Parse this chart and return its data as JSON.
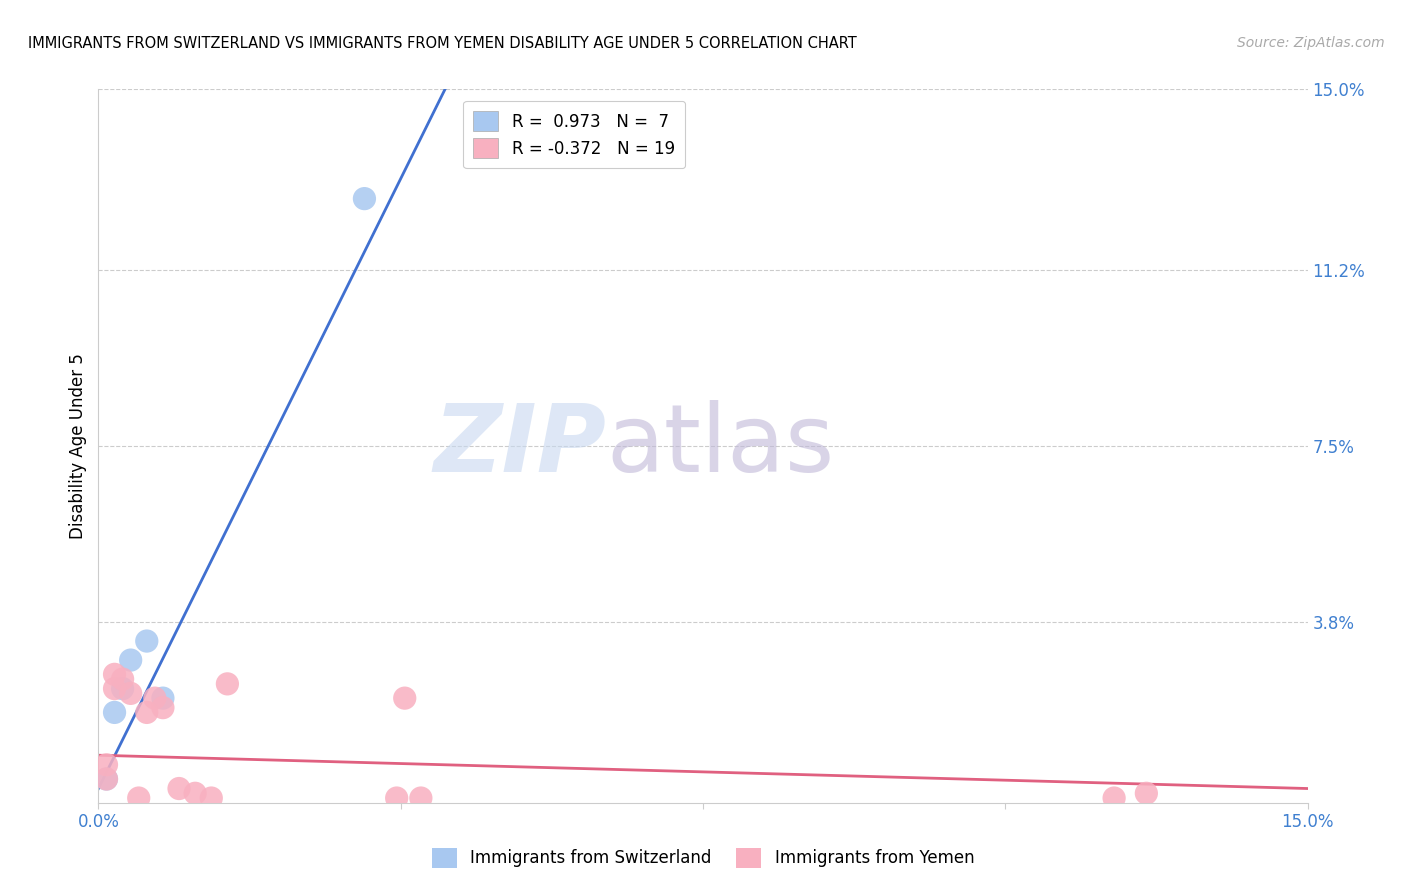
{
  "title": "IMMIGRANTS FROM SWITZERLAND VS IMMIGRANTS FROM YEMEN DISABILITY AGE UNDER 5 CORRELATION CHART",
  "source": "Source: ZipAtlas.com",
  "ylabel": "Disability Age Under 5",
  "xmin": 0.0,
  "xmax": 0.15,
  "ymin": 0.0,
  "ymax": 0.15,
  "switzerland_color": "#a8c8f0",
  "switzerland_edge_color": "#a8c8f0",
  "yemen_color": "#f8b0c0",
  "yemen_edge_color": "#f8b0c0",
  "switzerland_line_color": "#4070d0",
  "yemen_line_color": "#e06080",
  "switzerland_R": 0.973,
  "switzerland_N": 7,
  "yemen_R": -0.372,
  "yemen_N": 19,
  "watermark_zip": "ZIP",
  "watermark_atlas": "atlas",
  "watermark_color_zip": "#c8d8f0",
  "watermark_color_atlas": "#c0b8d8",
  "tick_color": "#4080d0",
  "grid_color": "#cccccc",
  "background_color": "#ffffff",
  "switzerland_points_x": [
    0.001,
    0.002,
    0.003,
    0.004,
    0.006,
    0.008,
    0.033
  ],
  "switzerland_points_y": [
    0.005,
    0.019,
    0.024,
    0.03,
    0.034,
    0.022,
    0.127
  ],
  "switzerland_line_x0": 0.0,
  "switzerland_line_y0": 0.003,
  "switzerland_line_x1": 0.043,
  "switzerland_line_y1": 0.15,
  "yemen_points_x": [
    0.001,
    0.001,
    0.002,
    0.002,
    0.003,
    0.004,
    0.005,
    0.006,
    0.007,
    0.008,
    0.01,
    0.012,
    0.014,
    0.016,
    0.037,
    0.038,
    0.04,
    0.126,
    0.13
  ],
  "yemen_points_y": [
    0.008,
    0.005,
    0.027,
    0.024,
    0.026,
    0.023,
    0.001,
    0.019,
    0.022,
    0.02,
    0.003,
    0.002,
    0.001,
    0.025,
    0.001,
    0.022,
    0.001,
    0.001,
    0.002
  ],
  "yemen_line_x0": 0.0,
  "yemen_line_y0": 0.01,
  "yemen_line_x1": 0.15,
  "yemen_line_y1": 0.003,
  "ytick_positions": [
    0.038,
    0.075,
    0.112,
    0.15
  ],
  "ytick_labels": [
    "3.8%",
    "7.5%",
    "11.2%",
    "15.0%"
  ]
}
